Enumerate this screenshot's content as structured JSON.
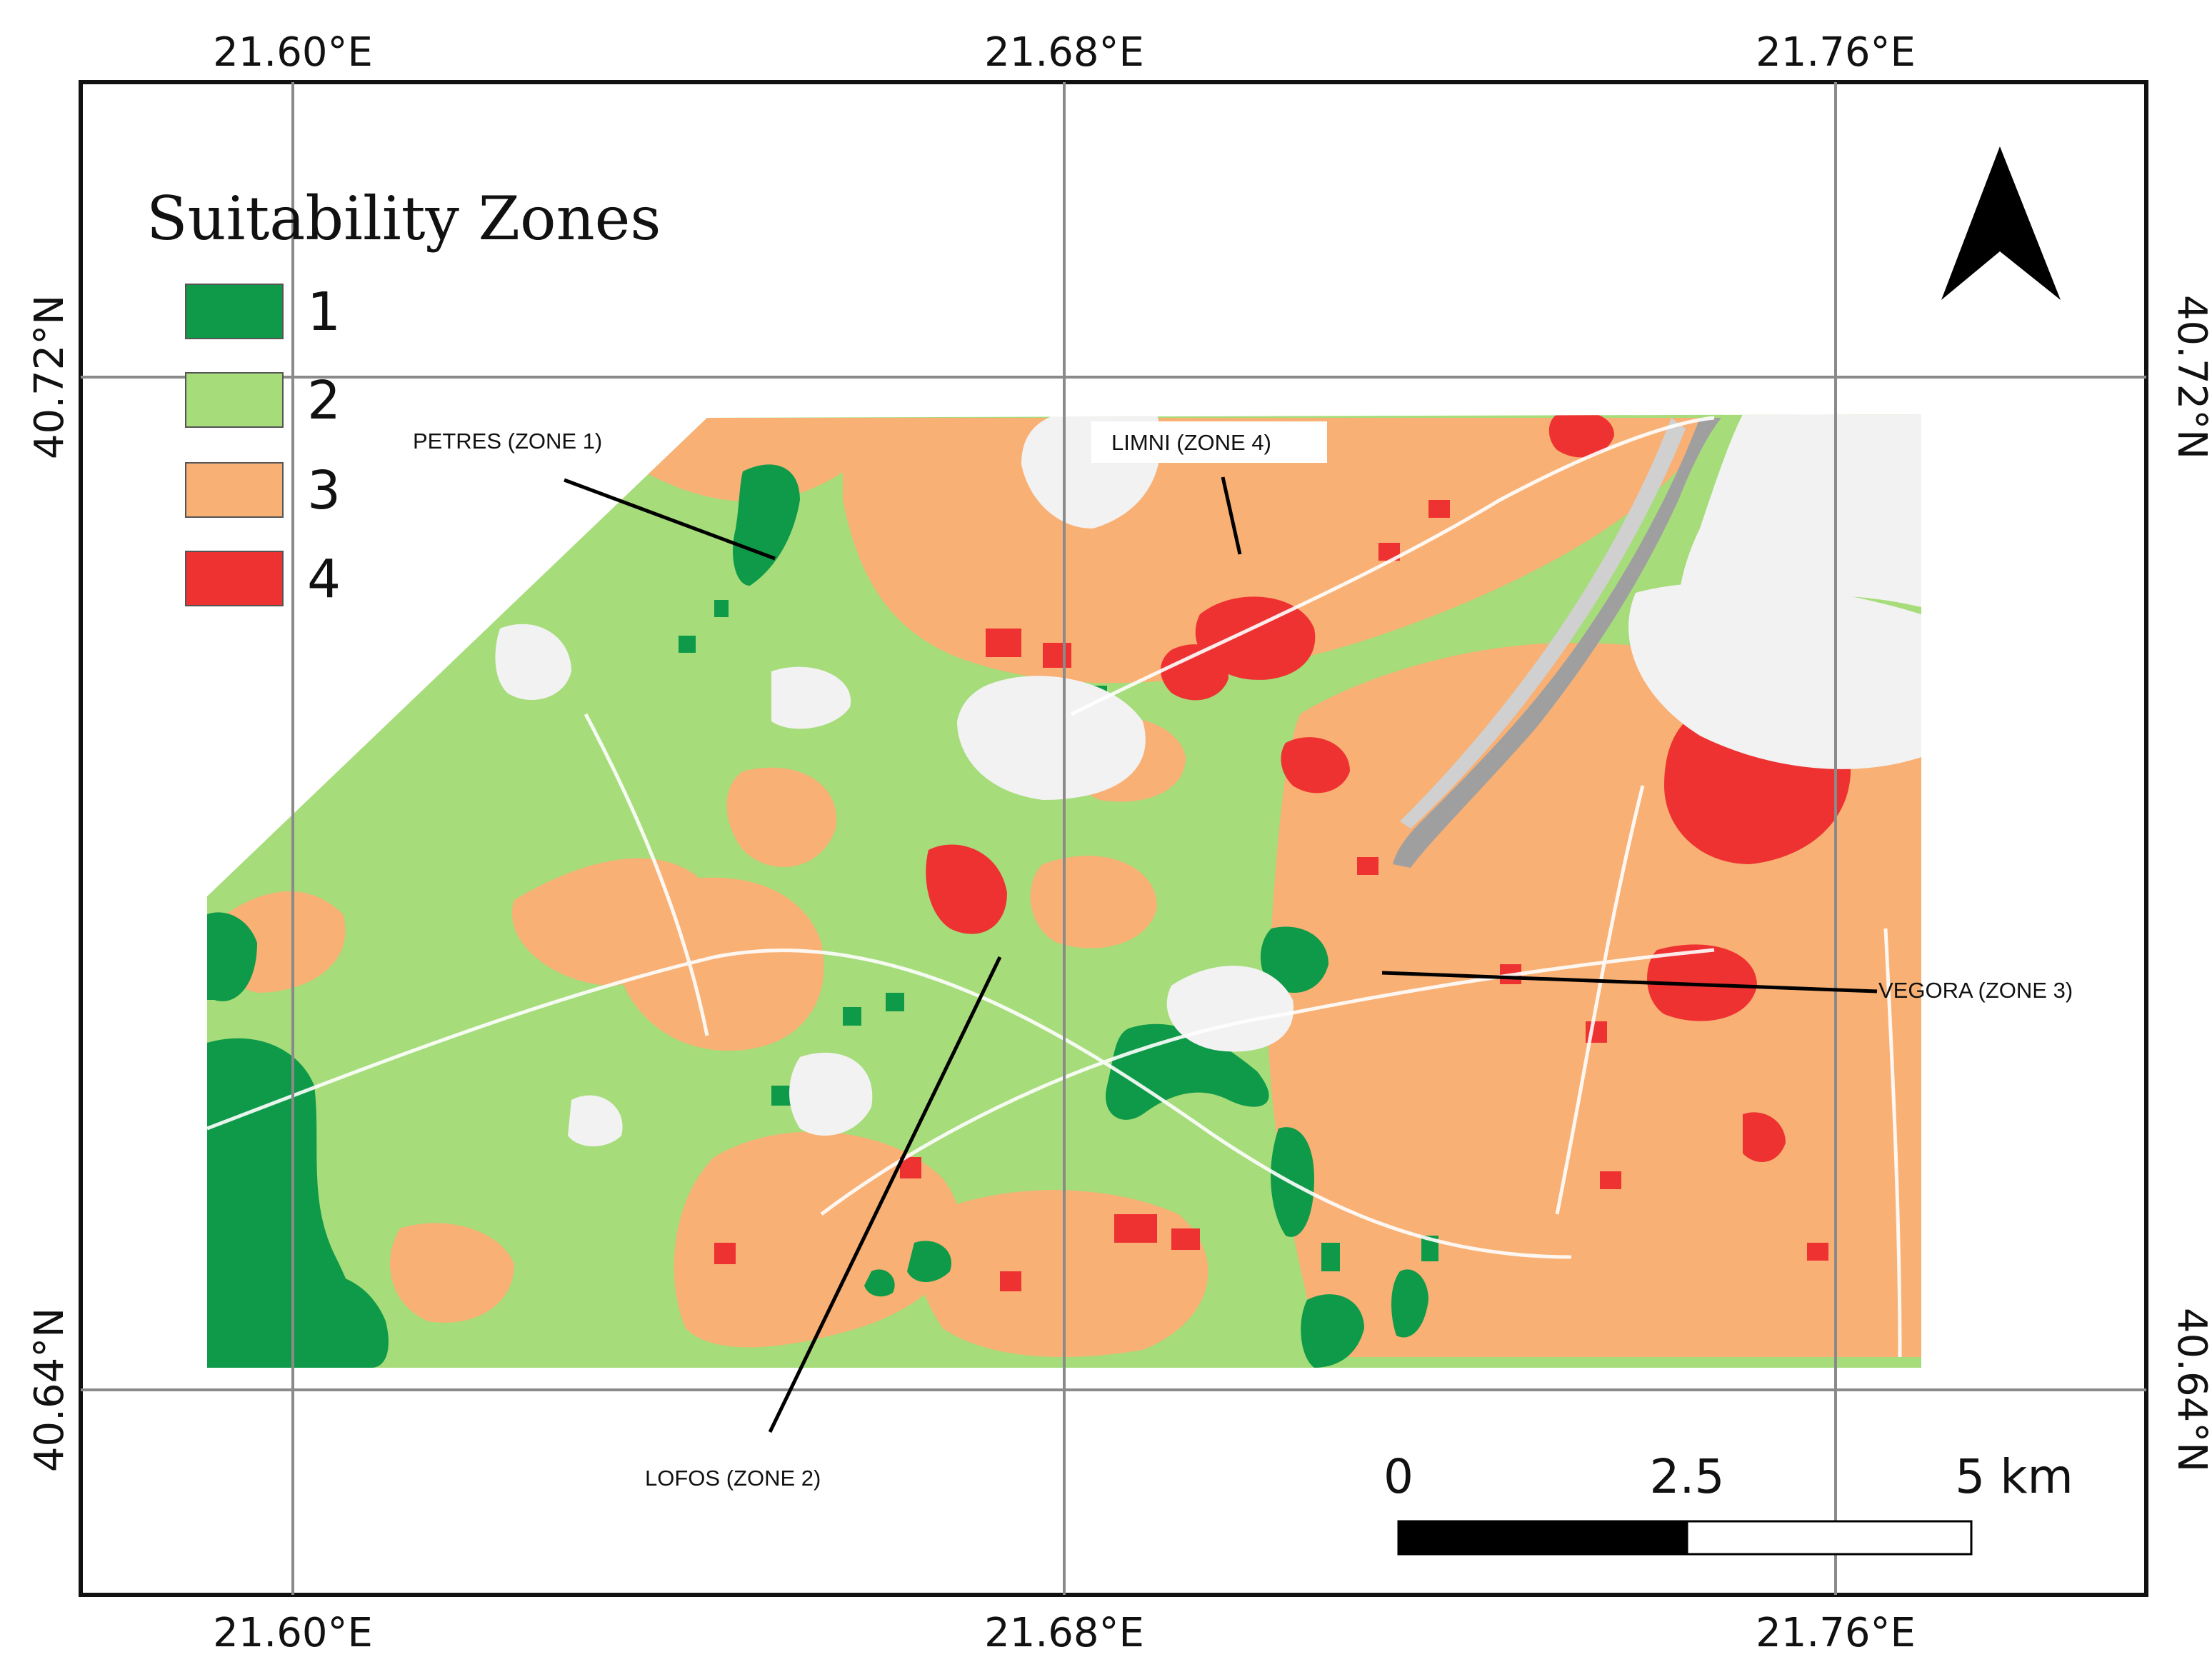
{
  "map": {
    "longitude_labels": [
      "21.60°E",
      "21.68°E",
      "21.76°E"
    ],
    "latitude_labels": [
      "40.72°N",
      "40.64°N"
    ],
    "legend": {
      "title": "Suitability Zones",
      "items": [
        {
          "label": "1",
          "color": "#0e9a48"
        },
        {
          "label": "2",
          "color": "#a6dc7a"
        },
        {
          "label": "3",
          "color": "#f8b074"
        },
        {
          "label": "4",
          "color": "#ee3232"
        }
      ]
    },
    "places": [
      {
        "label": "PETRES (ZONE 1)"
      },
      {
        "label": "LIMNI (ZONE 4)"
      },
      {
        "label": "VEGORA (ZONE 3)"
      },
      {
        "label": "LOFOS (ZONE 2)"
      }
    ],
    "scale_bar": {
      "labels": [
        "0",
        "2.5",
        "5 km"
      ]
    },
    "north_arrow": "north-arrow-icon"
  }
}
